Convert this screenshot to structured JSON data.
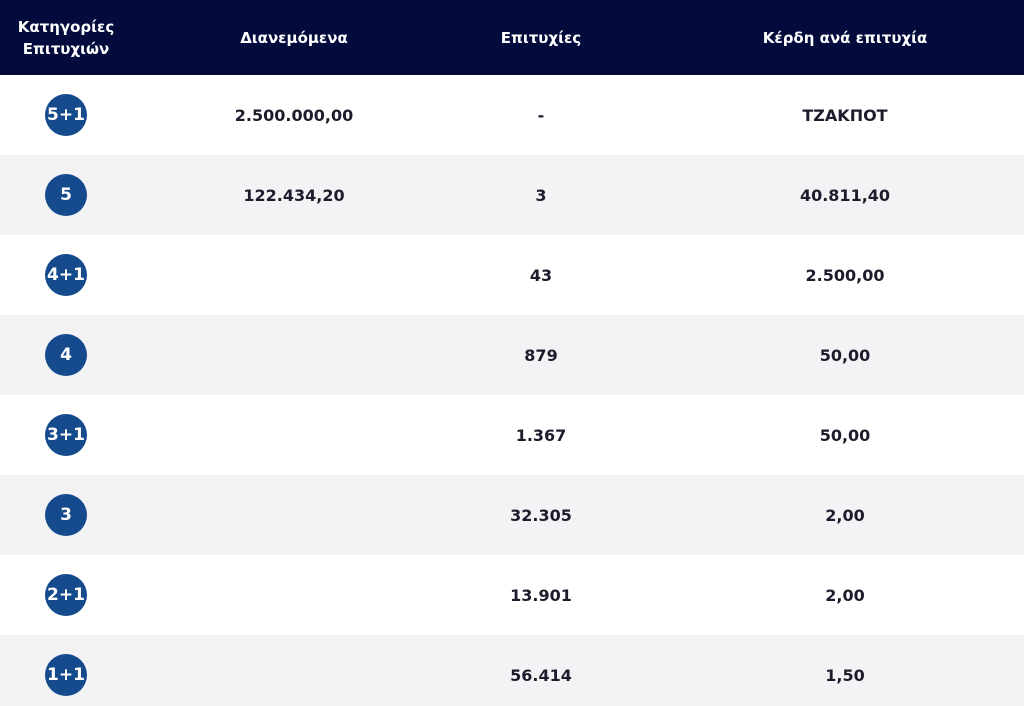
{
  "table": {
    "header": [
      "Κατηγορίες Επιτυχιών",
      "Διανεμόμενα",
      "Επιτυχίες",
      "Κέρδη ανά επιτυχία"
    ],
    "rows": [
      [
        "5+1",
        "2.500.000,00",
        "-",
        "ΤΖΑΚΠΟΤ"
      ],
      [
        "5",
        "122.434,20",
        "3",
        "40.811,40"
      ],
      [
        "4+1",
        null,
        "43",
        "2.500,00"
      ],
      [
        "4",
        null,
        "879",
        "50,00"
      ],
      [
        "3+1",
        null,
        "1.367",
        "50,00"
      ],
      [
        "3",
        null,
        "32.305",
        "2,00"
      ],
      [
        "2+1",
        null,
        "13.901",
        "2,00"
      ],
      [
        "1+1",
        null,
        "56.414",
        "1,50"
      ]
    ]
  }
}
